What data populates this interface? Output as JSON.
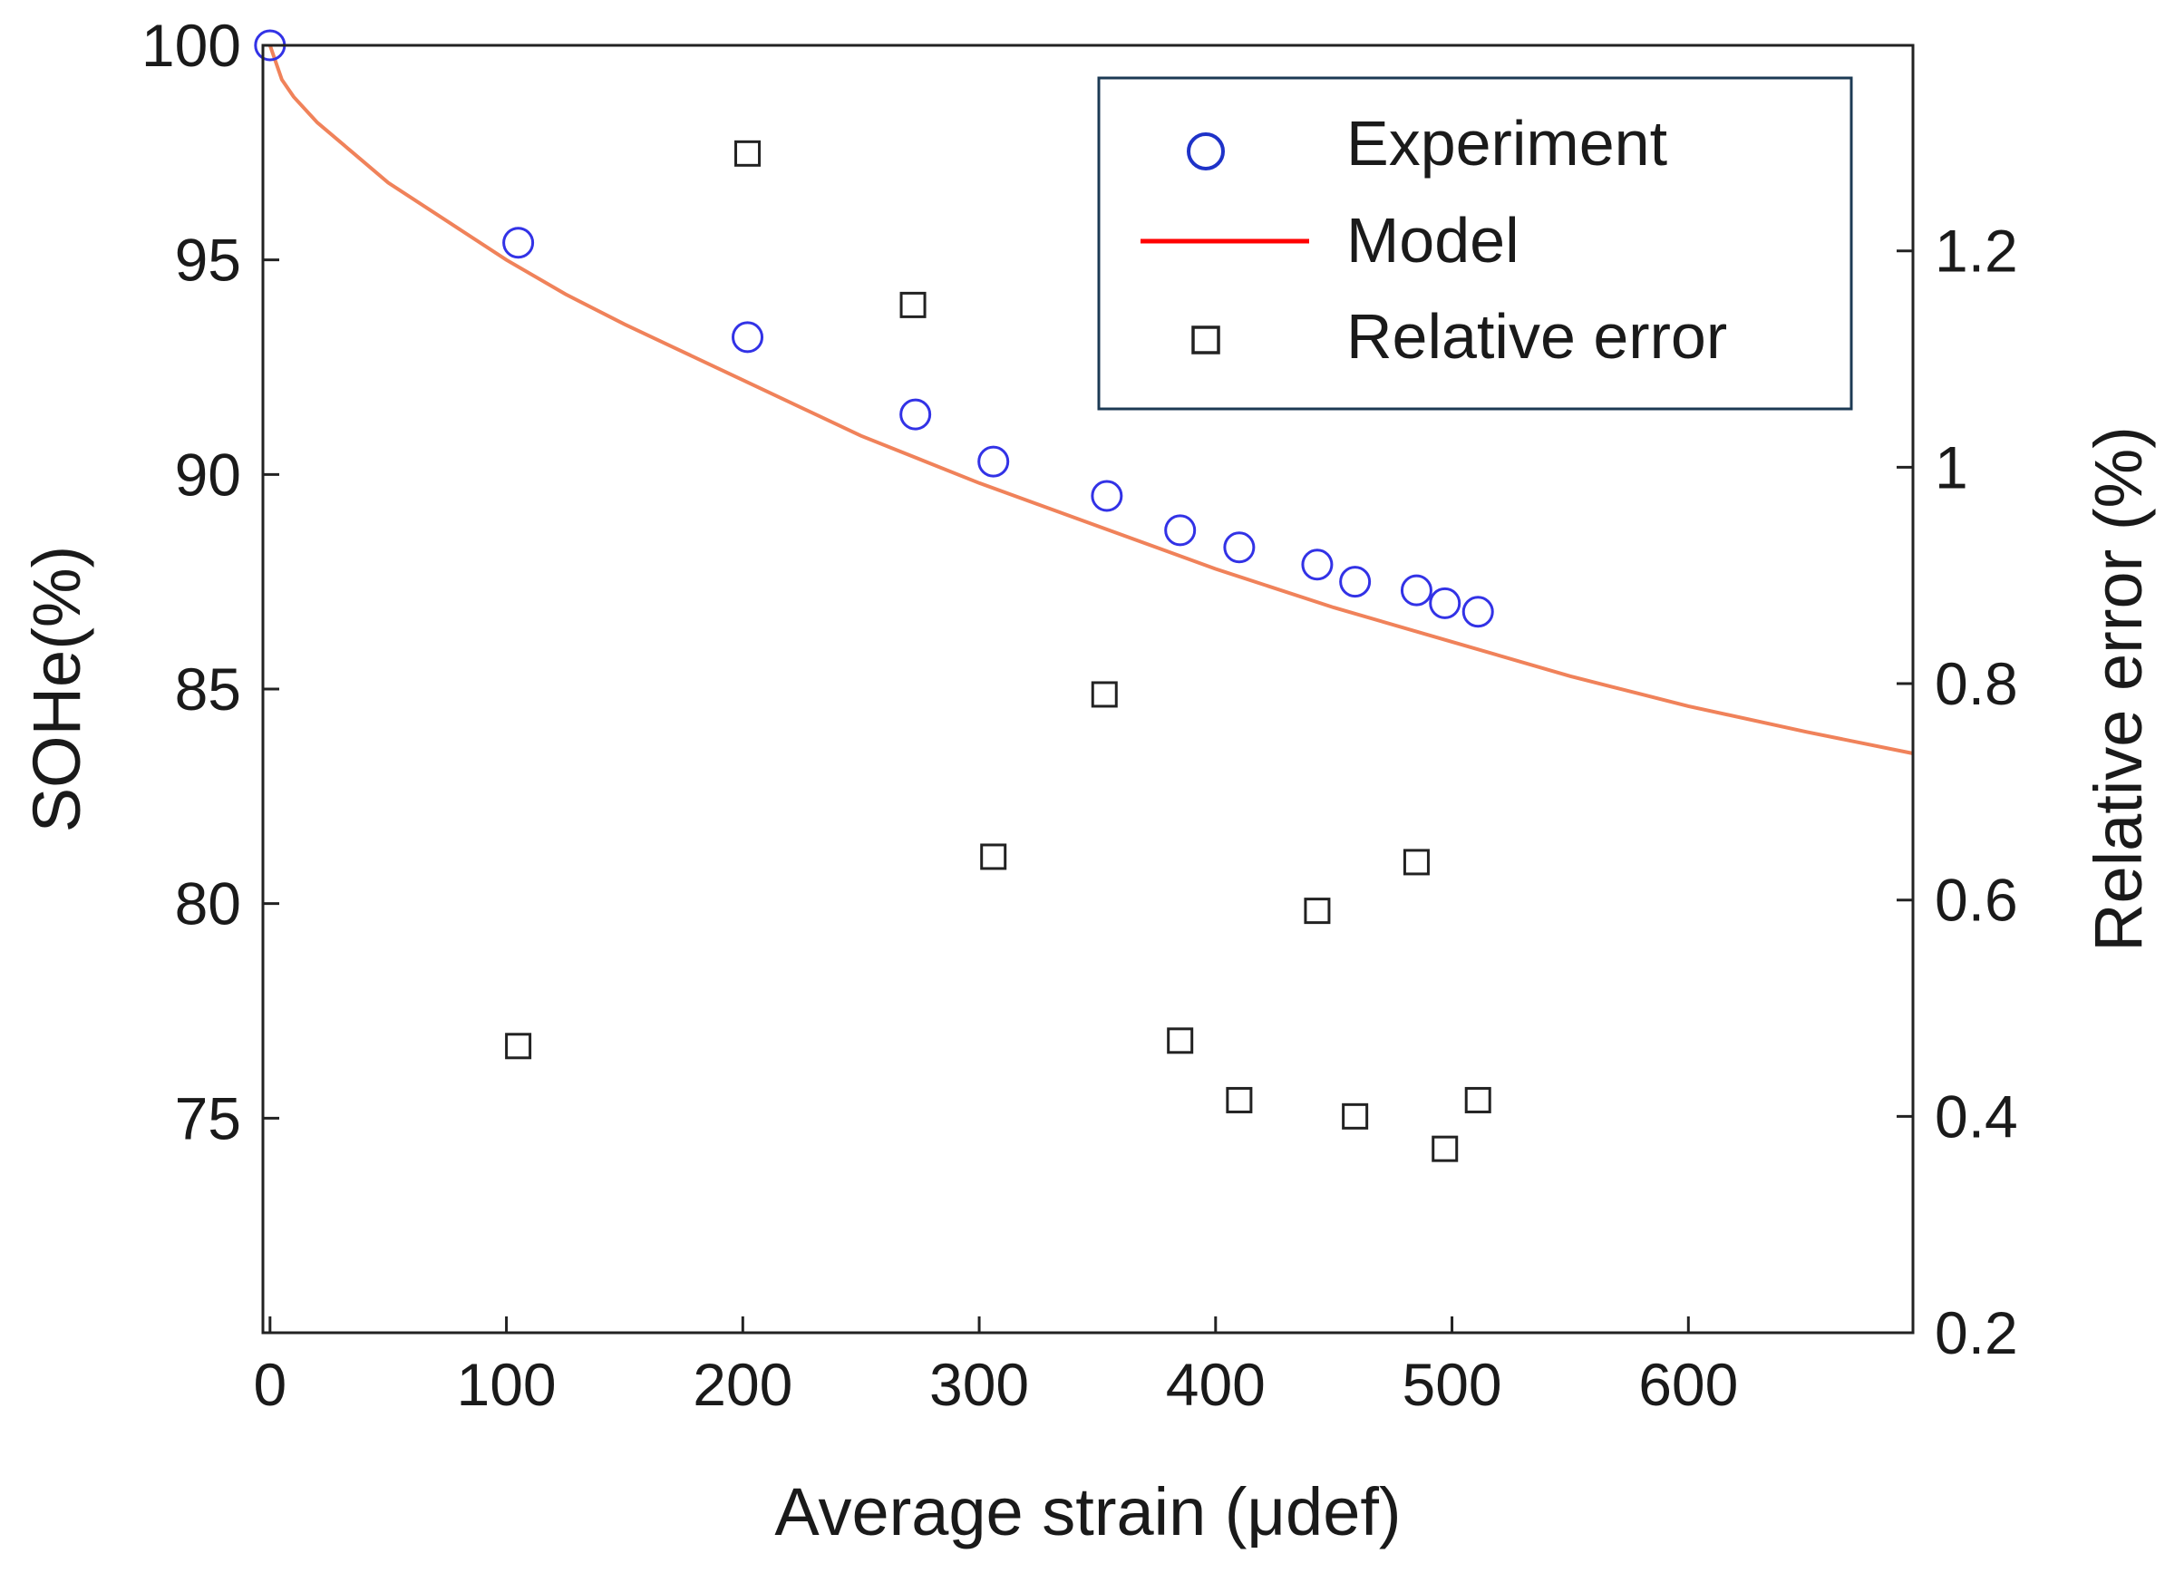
{
  "chart_data": {
    "type": "scatter",
    "xlabel": "Average strain (μdef)",
    "ylabel": "SOHe(%)",
    "y2label": "Relative error (%)",
    "xlim": [
      -3,
      695
    ],
    "ylim": [
      70,
      100
    ],
    "y2lim": [
      0.2,
      1.39
    ],
    "xticks": [
      0,
      100,
      200,
      300,
      400,
      500,
      600
    ],
    "yticks": [
      75,
      80,
      85,
      90,
      95,
      100
    ],
    "y2ticks": [
      0.2,
      0.4,
      0.6,
      0.8,
      1,
      1.2
    ],
    "y2ticklabels": [
      "0.2",
      "0.4",
      "0.6",
      "0.8",
      "1",
      "1.2"
    ],
    "legend_position": "top-right",
    "colors": {
      "experiment": "#3232e6",
      "model": "#f0825a",
      "legend_model": "#ff0000",
      "legend_experiment": "#1e32c8",
      "error": "#222222",
      "axis": "#222222"
    },
    "series": [
      {
        "name": "Experiment",
        "kind": "scatter-circle",
        "axis": "left",
        "x": [
          0,
          105,
          202,
          273,
          306,
          354,
          385,
          410,
          443,
          459,
          485,
          497,
          511
        ],
        "y": [
          100,
          95.4,
          93.2,
          91.4,
          90.3,
          89.5,
          88.7,
          88.3,
          87.9,
          87.5,
          87.3,
          87.0,
          86.8
        ]
      },
      {
        "name": "Model",
        "kind": "line",
        "axis": "left",
        "x": [
          0,
          5,
          10,
          20,
          35,
          50,
          75,
          100,
          125,
          150,
          200,
          250,
          300,
          350,
          400,
          450,
          500,
          550,
          600,
          650,
          695
        ],
        "y": [
          100,
          99.2,
          98.8,
          98.2,
          97.5,
          96.8,
          95.9,
          95.0,
          94.2,
          93.5,
          92.2,
          90.9,
          89.8,
          88.8,
          87.8,
          86.9,
          86.1,
          85.3,
          84.6,
          84.0,
          83.5
        ]
      },
      {
        "name": "Relative error",
        "kind": "scatter-square",
        "axis": "right",
        "x": [
          105,
          202,
          272,
          306,
          353,
          385,
          410,
          443,
          459,
          485,
          497,
          511
        ],
        "y": [
          0.465,
          1.29,
          1.15,
          0.64,
          0.79,
          0.47,
          0.415,
          0.59,
          0.4,
          0.635,
          0.37,
          0.415
        ]
      }
    ]
  }
}
